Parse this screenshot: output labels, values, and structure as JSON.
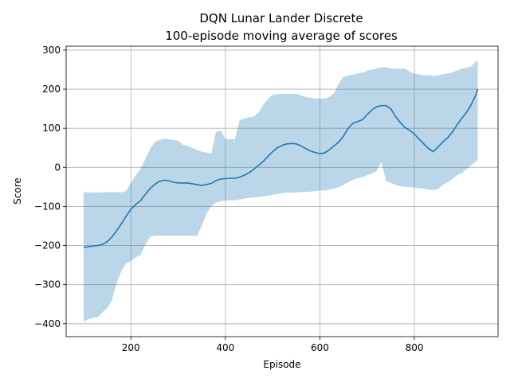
{
  "chart_data": {
    "type": "line",
    "title": "DQN Lunar Lander Discrete",
    "subtitle": "100-episode moving average of scores",
    "xlabel": "Episode",
    "ylabel": "Score",
    "xlim": [
      63,
      977
    ],
    "ylim": [
      -433,
      310
    ],
    "x_ticks": [
      200,
      400,
      600,
      800
    ],
    "y_ticks": [
      -400,
      -300,
      -200,
      -100,
      0,
      100,
      200,
      300
    ],
    "x_tick_labels": [
      "200",
      "400",
      "600",
      "800"
    ],
    "y_tick_labels": [
      "−400",
      "−300",
      "−200",
      "−100",
      "0",
      "100",
      "200",
      "300"
    ],
    "grid": true,
    "line_color": "#1f77b4",
    "band_color": "#1f77b4",
    "band_opacity": 0.3,
    "series": [
      {
        "x": [
          100,
          110,
          120,
          130,
          140,
          150,
          160,
          170,
          180,
          190,
          200,
          210,
          220,
          230,
          240,
          250,
          260,
          270,
          280,
          290,
          300,
          310,
          320,
          330,
          340,
          350,
          360,
          370,
          380,
          390,
          400,
          410,
          420,
          430,
          440,
          450,
          460,
          470,
          480,
          490,
          500,
          510,
          520,
          530,
          540,
          550,
          560,
          570,
          580,
          590,
          600,
          610,
          620,
          630,
          640,
          650,
          660,
          670,
          680,
          690,
          700,
          710,
          720,
          730,
          740,
          750,
          760,
          770,
          780,
          790,
          800,
          810,
          820,
          830,
          840,
          850,
          860,
          870,
          880,
          890,
          900,
          910,
          920,
          930,
          934
        ],
        "values": [
          -205,
          -203,
          -201,
          -200,
          -197,
          -190,
          -178,
          -162,
          -144,
          -125,
          -107,
          -95,
          -86,
          -70,
          -55,
          -44,
          -36,
          -33,
          -34,
          -38,
          -40,
          -40,
          -40,
          -42,
          -44,
          -46,
          -44,
          -41,
          -34,
          -30,
          -29,
          -28,
          -28,
          -25,
          -20,
          -14,
          -5,
          5,
          15,
          28,
          40,
          50,
          56,
          60,
          61,
          60,
          55,
          48,
          42,
          38,
          35,
          37,
          45,
          55,
          65,
          80,
          100,
          113,
          117,
          122,
          135,
          147,
          155,
          158,
          158,
          150,
          130,
          115,
          102,
          95,
          85,
          72,
          60,
          48,
          40,
          52,
          65,
          75,
          90,
          108,
          125,
          140,
          160,
          185,
          200
        ],
        "upper": [
          -63,
          -64,
          -64,
          -64,
          -64,
          -63,
          -64,
          -63,
          -64,
          -60,
          -40,
          -20,
          -5,
          20,
          45,
          65,
          70,
          73,
          72,
          70,
          68,
          58,
          55,
          50,
          45,
          40,
          38,
          35,
          90,
          95,
          72,
          72,
          72,
          120,
          125,
          128,
          130,
          140,
          160,
          175,
          185,
          187,
          188,
          188,
          188,
          188,
          184,
          180,
          178,
          176,
          176,
          176,
          180,
          190,
          215,
          232,
          235,
          237,
          240,
          242,
          247,
          250,
          253,
          256,
          256,
          253,
          252,
          252,
          252,
          245,
          240,
          238,
          235,
          235,
          233,
          235,
          238,
          240,
          243,
          248,
          252,
          255,
          258,
          271,
          273
        ],
        "lower": [
          -395,
          -388,
          -385,
          -383,
          -370,
          -360,
          -340,
          -295,
          -265,
          -245,
          -240,
          -230,
          -225,
          -200,
          -178,
          -175,
          -175,
          -175,
          -175,
          -175,
          -175,
          -175,
          -175,
          -175,
          -175,
          -150,
          -118,
          -100,
          -90,
          -87,
          -85,
          -84,
          -84,
          -82,
          -80,
          -78,
          -77,
          -76,
          -74,
          -72,
          -70,
          -68,
          -66,
          -65,
          -65,
          -64,
          -63,
          -63,
          -62,
          -61,
          -60,
          -59,
          -57,
          -55,
          -50,
          -45,
          -38,
          -32,
          -28,
          -25,
          -20,
          -15,
          -10,
          14,
          -35,
          -40,
          -45,
          -48,
          -50,
          -51,
          -52,
          -53,
          -55,
          -57,
          -58,
          -56,
          -45,
          -38,
          -30,
          -20,
          -15,
          -5,
          5,
          15,
          18
        ]
      }
    ]
  }
}
